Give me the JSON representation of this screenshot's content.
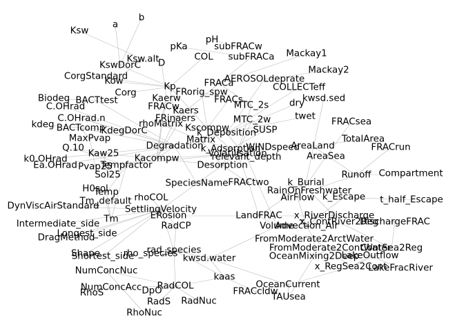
{
  "colors": {
    "background": "#ffffff",
    "edge": "#b9b9b9",
    "label": "#000000"
  },
  "nodes": [
    "Ksw",
    "a",
    "b",
    "pH",
    "subFRACw",
    "pKa",
    "Ksw.alt",
    "KswDorC",
    "D",
    "COL",
    "subFRACa",
    "Mackay1",
    "Mackay2",
    "CorgStandard",
    "Kow",
    "Kp",
    "FRACa",
    "AEROSOLdeprate",
    "COLLECTeff",
    "Corg",
    "FRorig_spw",
    "kwsd.sed",
    "Biodeg",
    "BACTtest",
    "FRACs",
    "MTC_2s",
    "dry",
    "C.OHrad",
    "Kaerw",
    "FRACw",
    "C.OHrad.n",
    "Kaers",
    "MTC_2w",
    "twet",
    "kdeg",
    "BACTcomp",
    "KdegDorC",
    "rhoMatrix",
    "FRinaers",
    "Kscompw",
    "SUSP",
    "FRACsea",
    "MaxPvap",
    "k_Deposition",
    "Matrix",
    "TotalArea",
    "FRACrun",
    "Q.10",
    "Kaw25",
    "Degradation",
    "AreaLand",
    "k0.OHrad",
    "Kacompw",
    "WINDspeed",
    "relevant_depth",
    "AreaSea",
    "Ea.OHrad",
    "Pvap25",
    "Tempfactor",
    "k_Adsorption",
    "Volatilisation",
    "Desorption",
    "Runoff",
    "Compartment",
    "Sol25",
    "SpeciesName",
    "H0sol",
    "Temp",
    "k_Burial",
    "FRACtwo",
    "RainOnFreshwater",
    "k_Escape",
    "t_half_Escape",
    "Tm_default",
    "rhoCOL",
    "SettlingVelocity",
    "AirFlow",
    "DynViscAirStandard",
    "ERosion",
    "LandFRAC",
    "x_RiverDischarge",
    "Tm",
    "Volume",
    "DischargeFRAC",
    "Intermediate_side",
    "RadCP",
    "Advection_Air",
    "DragMethod",
    "Longest_side",
    "FromModerate2ArctWater",
    "x_ContRiver2Reg",
    "Shape",
    "rad_species",
    "rho_species",
    "kwsd.water",
    "Shortest_side",
    "FromModerate2ContWater",
    "OceanMixing2Deep",
    "ContSea2Reg",
    "x_RegSea2Cont",
    "LakeFracRiver",
    "NumConcNuc",
    "kaas",
    "LakeOutflow",
    "RadCOL",
    "NumConcAcc",
    "OceanCurrent",
    "RhoS",
    "DpO",
    "FRACcldw",
    "RadS",
    "RadNuc",
    "TAUsea",
    "RhoNuc"
  ]
}
